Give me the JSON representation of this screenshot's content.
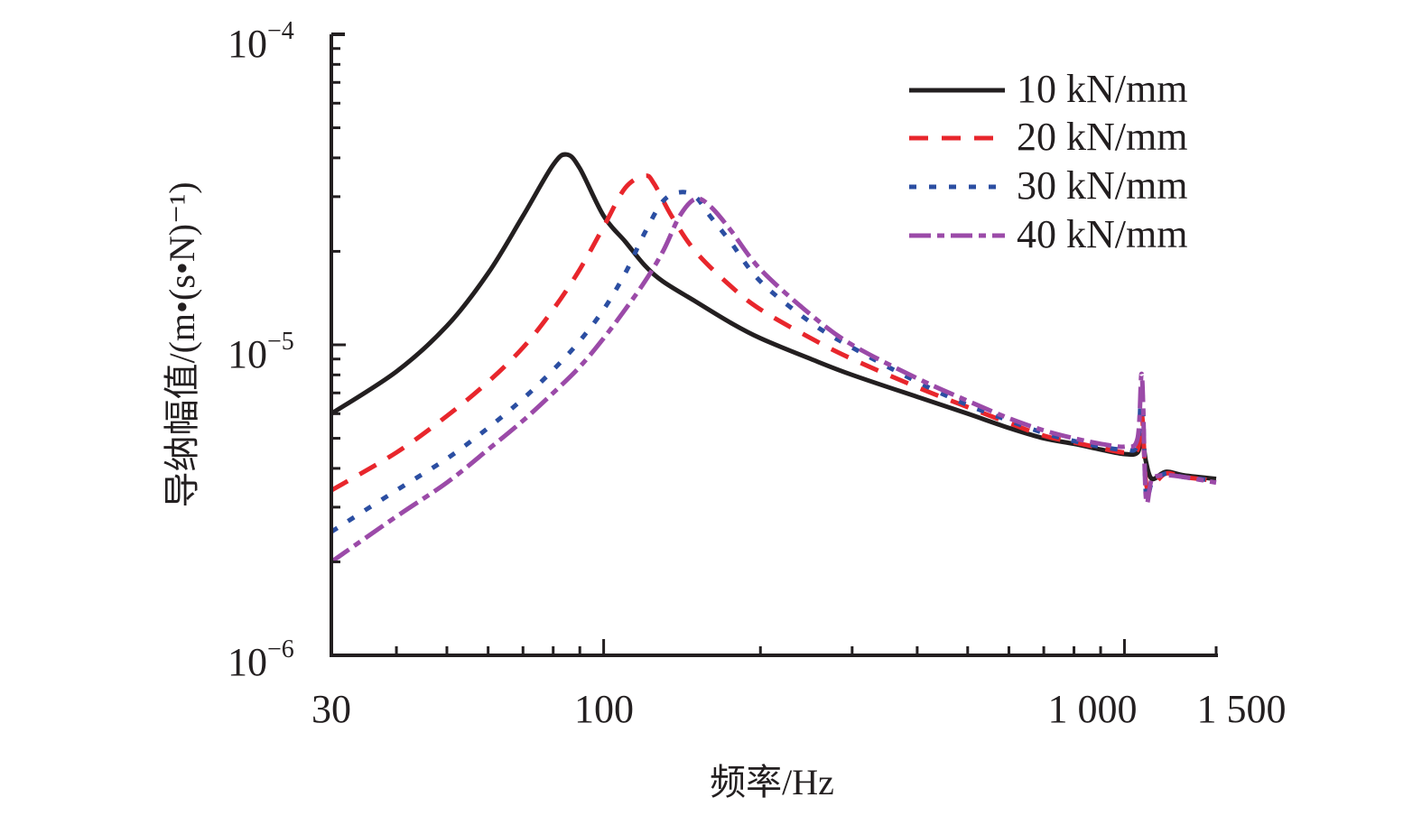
{
  "chart_data": {
    "type": "line",
    "title": "",
    "xlabel": "频率/Hz",
    "ylabel": "导纳幅值/(m•(s•N)⁻¹)",
    "xscale": "log",
    "yscale": "log",
    "xlim": [
      30,
      1500
    ],
    "ylim": [
      1e-06,
      0.0001
    ],
    "x_ticks": [
      {
        "value": 30,
        "label": "30"
      },
      {
        "value": 100,
        "label": "100"
      },
      {
        "value": 1000,
        "label": "1 000"
      },
      {
        "value": 1500,
        "label": "1 500"
      }
    ],
    "y_ticks": [
      {
        "value": 1e-06,
        "base": "10",
        "exp": "−6"
      },
      {
        "value": 1e-05,
        "base": "10",
        "exp": "−5"
      },
      {
        "value": 0.0001,
        "base": "10",
        "exp": "−4"
      }
    ],
    "grid": false,
    "legend_position": "top-right",
    "series": [
      {
        "name": "10 kN/mm",
        "color": "#231f20",
        "style": "solid",
        "x": [
          30,
          40,
          50,
          60,
          70,
          80,
          85,
          90,
          100,
          110,
          120,
          130,
          150,
          175,
          200,
          250,
          300,
          400,
          500,
          600,
          700,
          800,
          900,
          1000,
          1060,
          1080,
          1100,
          1130,
          1200,
          1300,
          1500
        ],
        "y": [
          6e-06,
          8.2e-06,
          1.15e-05,
          1.7e-05,
          2.6e-05,
          3.8e-05,
          4.1e-05,
          3.7e-05,
          2.6e-05,
          2.15e-05,
          1.8e-05,
          1.6e-05,
          1.38e-05,
          1.18e-05,
          1.05e-05,
          9e-06,
          8e-06,
          6.8e-06,
          6e-06,
          5.4e-06,
          5e-06,
          4.8e-06,
          4.6e-06,
          4.45e-06,
          4.5e-06,
          5.1e-06,
          4.2e-06,
          3.7e-06,
          3.9e-06,
          3.8e-06,
          3.7e-06
        ]
      },
      {
        "name": "20 kN/mm",
        "color": "#e8262c",
        "style": "dashed",
        "x": [
          30,
          40,
          50,
          60,
          70,
          80,
          90,
          100,
          110,
          120,
          125,
          135,
          150,
          175,
          200,
          250,
          300,
          400,
          500,
          600,
          700,
          800,
          900,
          1000,
          1060,
          1080,
          1100,
          1130,
          1200,
          1300,
          1500
        ],
        "y": [
          3.4e-06,
          4.5e-06,
          5.9e-06,
          7.6e-06,
          9.8e-06,
          1.3e-05,
          1.75e-05,
          2.4e-05,
          3.2e-05,
          3.5e-05,
          3.3e-05,
          2.6e-05,
          2e-05,
          1.55e-05,
          1.3e-05,
          1.05e-05,
          9e-06,
          7.3e-06,
          6.3e-06,
          5.6e-06,
          5.1e-06,
          4.85e-06,
          4.65e-06,
          4.5e-06,
          4.6e-06,
          6e-06,
          3.6e-06,
          3.5e-06,
          3.85e-06,
          3.75e-06,
          3.65e-06
        ]
      },
      {
        "name": "30 kN/mm",
        "color": "#2b4ea2",
        "style": "dotted",
        "x": [
          30,
          40,
          50,
          60,
          70,
          80,
          90,
          100,
          110,
          120,
          130,
          140,
          150,
          160,
          175,
          200,
          250,
          300,
          400,
          500,
          600,
          700,
          800,
          900,
          1000,
          1060,
          1080,
          1100,
          1130,
          1200,
          1300,
          1500
        ],
        "y": [
          2.5e-06,
          3.4e-06,
          4.3e-06,
          5.4e-06,
          6.7e-06,
          8.3e-06,
          1.03e-05,
          1.3e-05,
          1.7e-05,
          2.3e-05,
          2.9e-05,
          3.1e-05,
          3e-05,
          2.6e-05,
          2.15e-05,
          1.6e-05,
          1.18e-05,
          9.8e-06,
          7.6e-06,
          6.4e-06,
          5.7e-06,
          5.2e-06,
          4.9e-06,
          4.7e-06,
          4.6e-06,
          4.8e-06,
          7.5e-06,
          3.3e-06,
          3.6e-06,
          3.85e-06,
          3.75e-06,
          3.65e-06
        ]
      },
      {
        "name": "40 kN/mm",
        "color": "#9b4aa8",
        "style": "dashdot",
        "x": [
          30,
          40,
          50,
          60,
          70,
          80,
          90,
          100,
          110,
          120,
          130,
          140,
          150,
          160,
          175,
          200,
          250,
          300,
          400,
          500,
          600,
          700,
          800,
          900,
          1000,
          1060,
          1080,
          1100,
          1130,
          1200,
          1300,
          1500
        ],
        "y": [
          2e-06,
          2.8e-06,
          3.6e-06,
          4.6e-06,
          5.7e-06,
          7e-06,
          8.5e-06,
          1.05e-05,
          1.3e-05,
          1.6e-05,
          2e-05,
          2.6e-05,
          2.95e-05,
          2.8e-05,
          2.35e-05,
          1.75e-05,
          1.25e-05,
          1e-05,
          7.8e-06,
          6.6e-06,
          5.8e-06,
          5.3e-06,
          5e-06,
          4.8e-06,
          4.7e-06,
          5e-06,
          8e-06,
          3.2e-06,
          3.7e-06,
          3.8e-06,
          3.75e-06,
          3.6e-06
        ]
      }
    ]
  }
}
